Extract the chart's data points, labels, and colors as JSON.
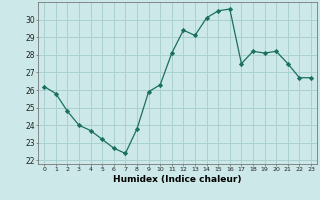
{
  "x": [
    0,
    1,
    2,
    3,
    4,
    5,
    6,
    7,
    8,
    9,
    10,
    11,
    12,
    13,
    14,
    15,
    16,
    17,
    18,
    19,
    20,
    21,
    22,
    23
  ],
  "y": [
    26.2,
    25.8,
    24.8,
    24.0,
    23.7,
    23.2,
    22.7,
    22.4,
    23.8,
    25.9,
    26.3,
    28.1,
    29.4,
    29.1,
    30.1,
    30.5,
    30.6,
    27.5,
    28.2,
    28.1,
    28.2,
    27.5,
    26.7,
    26.7
  ],
  "line_color": "#1a7060",
  "marker": "D",
  "marker_size": 2.2,
  "bg_color": "#cce8e8",
  "grid_color": "#aad0d0",
  "xlabel": "Humidex (Indice chaleur)",
  "ylim": [
    21.8,
    31.0
  ],
  "xlim": [
    -0.5,
    23.5
  ],
  "yticks": [
    22,
    23,
    24,
    25,
    26,
    27,
    28,
    29,
    30
  ],
  "xticks": [
    0,
    1,
    2,
    3,
    4,
    5,
    6,
    7,
    8,
    9,
    10,
    11,
    12,
    13,
    14,
    15,
    16,
    17,
    18,
    19,
    20,
    21,
    22,
    23
  ]
}
